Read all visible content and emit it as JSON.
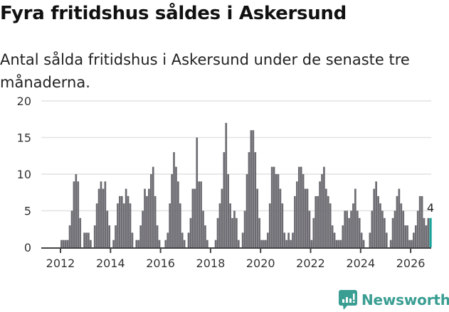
{
  "header": {
    "title": "Fyra fritidshus såldes i Askersund",
    "subtitle": "Antal sålda fritidshus i Askersund under de senaste tre månaderna."
  },
  "branding": {
    "logo_label": "Newsworthy",
    "logo_icon": "bar-chart-speech-bubble-icon",
    "color": "#3a9e93"
  },
  "chart_data": {
    "type": "bar",
    "title": "Fyra fritidshus såldes i Askersund",
    "subtitle": "Antal sålda fritidshus i Askersund under de senaste tre månaderna.",
    "xlabel": "",
    "ylabel": "",
    "ylim": [
      0,
      20
    ],
    "yticks": [
      0,
      5,
      10,
      15,
      20
    ],
    "xticks": [
      "2012",
      "2014",
      "2016",
      "2018",
      "2020",
      "2022",
      "2024",
      "2026"
    ],
    "grid": true,
    "bar_color": "#6d6c72",
    "highlight_color": "#1aa39a",
    "start": "2012-01",
    "frequency": "monthly",
    "annotation": {
      "label": "4",
      "index": "last"
    },
    "values": [
      1,
      1,
      1,
      1,
      3,
      5,
      9,
      10,
      9,
      4,
      0,
      2,
      2,
      2,
      1,
      0,
      3,
      6,
      8,
      9,
      8,
      9,
      5,
      3,
      0,
      1,
      3,
      6,
      7,
      7,
      6,
      8,
      7,
      6,
      2,
      0,
      1,
      1,
      3,
      5,
      8,
      7,
      8,
      10,
      11,
      7,
      3,
      1,
      0,
      0,
      1,
      2,
      6,
      10,
      13,
      11,
      9,
      6,
      2,
      1,
      0,
      2,
      4,
      8,
      8,
      15,
      9,
      9,
      5,
      3,
      1,
      0,
      0,
      0,
      1,
      4,
      6,
      8,
      13,
      17,
      10,
      6,
      4,
      5,
      4,
      1,
      0,
      2,
      5,
      10,
      13,
      16,
      16,
      13,
      8,
      4,
      1,
      1,
      1,
      2,
      6,
      11,
      11,
      10,
      10,
      8,
      6,
      2,
      1,
      2,
      1,
      2,
      7,
      9,
      11,
      11,
      10,
      8,
      8,
      5,
      1,
      4,
      7,
      7,
      9,
      10,
      11,
      8,
      7,
      6,
      3,
      2,
      1,
      1,
      1,
      3,
      5,
      5,
      4,
      5,
      6,
      8,
      5,
      4,
      2,
      1,
      0,
      0,
      2,
      5,
      8,
      9,
      7,
      6,
      5,
      4,
      2,
      0,
      1,
      4,
      5,
      7,
      8,
      6,
      5,
      3,
      3,
      1,
      1,
      2,
      3,
      5,
      7,
      7,
      4,
      3,
      4,
      4
    ]
  }
}
